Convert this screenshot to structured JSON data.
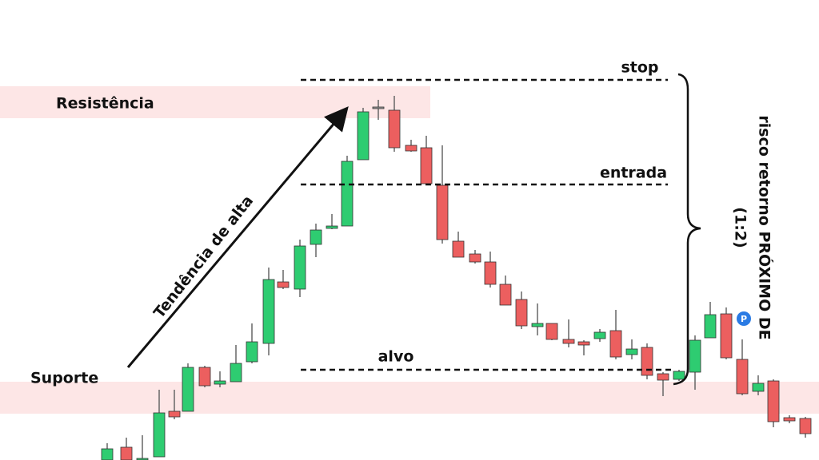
{
  "zones": {
    "resistance": "Resistência",
    "support": "Suporte"
  },
  "trend_label": "Tendência de alta",
  "levels": {
    "stop": "stop",
    "entry": "entrada",
    "target": "alvo"
  },
  "risk_note": {
    "line1": "risco retorno PRÓXIMO DE",
    "line2": "(1:2)"
  },
  "badge": "P"
}
